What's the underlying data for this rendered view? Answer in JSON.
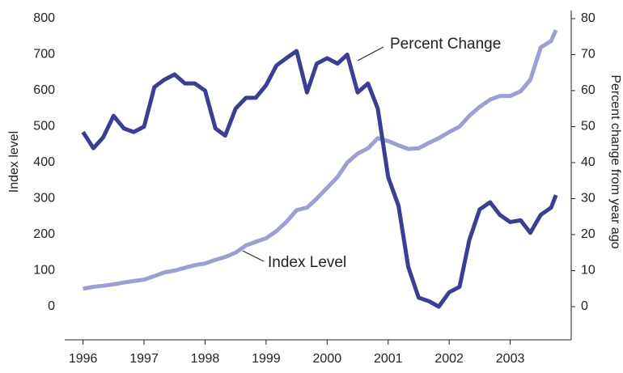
{
  "chart_data": {
    "type": "line",
    "x": [
      1996.0,
      1996.17,
      1996.33,
      1996.5,
      1996.67,
      1996.83,
      1997.0,
      1997.17,
      1997.33,
      1997.5,
      1997.67,
      1997.83,
      1998.0,
      1998.17,
      1998.33,
      1998.5,
      1998.67,
      1998.83,
      1999.0,
      1999.17,
      1999.33,
      1999.5,
      1999.67,
      1999.83,
      2000.0,
      2000.17,
      2000.33,
      2000.5,
      2000.67,
      2000.83,
      2001.0,
      2001.17,
      2001.33,
      2001.5,
      2001.67,
      2001.83,
      2002.0,
      2002.17,
      2002.33,
      2002.5,
      2002.67,
      2002.83,
      2003.0,
      2003.17,
      2003.33,
      2003.5,
      2003.67,
      2003.75
    ],
    "series": [
      {
        "name": "Index Level",
        "color": "#9b9fd4",
        "axis": "y",
        "values": [
          50,
          55,
          58,
          62,
          67,
          71,
          75,
          85,
          95,
          100,
          108,
          115,
          120,
          130,
          138,
          150,
          170,
          180,
          190,
          210,
          235,
          268,
          275,
          300,
          330,
          360,
          400,
          425,
          440,
          468,
          460,
          448,
          438,
          440,
          455,
          468,
          485,
          500,
          530,
          555,
          575,
          585,
          585,
          598,
          630,
          720,
          738,
          768
        ]
      },
      {
        "name": "Percent Change",
        "color": "#3a3f94",
        "axis": "y2",
        "values": [
          48.5,
          44,
          47,
          53,
          49.5,
          48.5,
          50,
          61,
          63,
          64.5,
          62,
          62,
          60,
          49.5,
          47.5,
          55,
          58,
          58,
          61.5,
          67,
          69,
          71,
          59.5,
          67.5,
          69,
          67.5,
          70,
          59.5,
          62,
          55,
          36,
          28,
          11,
          2.5,
          1.5,
          0,
          4,
          5.5,
          18.5,
          27,
          29,
          25.5,
          23.5,
          24,
          20.5,
          25.5,
          27.5,
          31
        ]
      }
    ],
    "y_label": "Index level",
    "y2_label": "Percent change from year ago",
    "xlim": [
      1995.7,
      2004.0
    ],
    "xticks": [
      1996,
      1997,
      1998,
      1999,
      2000,
      2001,
      2002,
      2003
    ],
    "ylim": [
      0,
      800
    ],
    "yticks": [
      0,
      100,
      200,
      300,
      400,
      500,
      600,
      700,
      800
    ],
    "y2lim": [
      0,
      80
    ],
    "y2ticks": [
      0,
      10,
      20,
      30,
      40,
      50,
      60,
      70,
      80
    ]
  }
}
